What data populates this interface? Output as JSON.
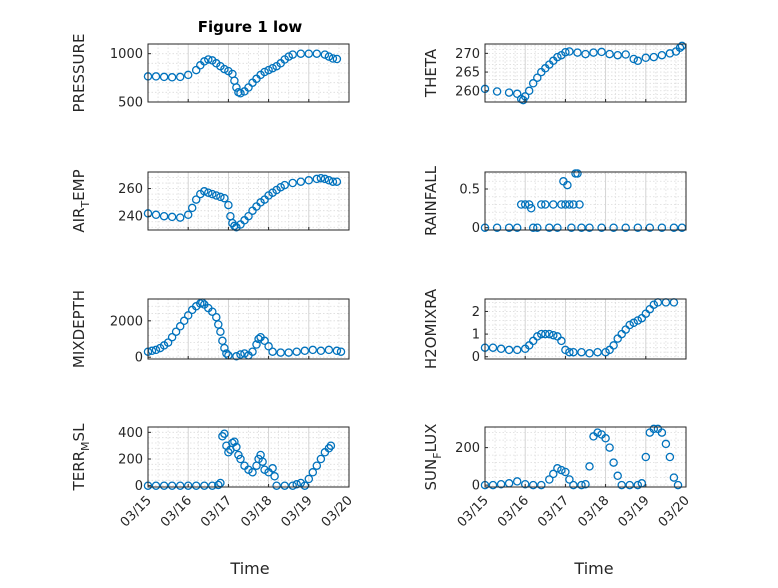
{
  "figure": {
    "title": "Figure 1 low",
    "xlabel": "Time"
  },
  "colors": {
    "marker": "#0072BD",
    "axis": "#262626",
    "grid": "#dcdcdc"
  },
  "x_ticks": [
    "03/15",
    "03/16",
    "03/17",
    "03/18",
    "03/19",
    "03/20"
  ],
  "chart_data": [
    {
      "type": "scatter",
      "ylabel": "PRESSURE",
      "yticks": [
        "500",
        "1000"
      ],
      "ylim": [
        500,
        1100
      ],
      "points": [
        [
          0.0,
          765
        ],
        [
          0.2,
          765
        ],
        [
          0.4,
          760
        ],
        [
          0.6,
          755
        ],
        [
          0.8,
          760
        ],
        [
          1.0,
          780
        ],
        [
          1.2,
          830
        ],
        [
          1.3,
          880
        ],
        [
          1.4,
          920
        ],
        [
          1.5,
          940
        ],
        [
          1.6,
          930
        ],
        [
          1.7,
          900
        ],
        [
          1.8,
          870
        ],
        [
          1.9,
          840
        ],
        [
          2.0,
          820
        ],
        [
          2.1,
          790
        ],
        [
          2.15,
          720
        ],
        [
          2.2,
          650
        ],
        [
          2.25,
          600
        ],
        [
          2.3,
          590
        ],
        [
          2.4,
          610
        ],
        [
          2.5,
          650
        ],
        [
          2.6,
          700
        ],
        [
          2.7,
          740
        ],
        [
          2.8,
          780
        ],
        [
          2.9,
          810
        ],
        [
          3.0,
          830
        ],
        [
          3.1,
          850
        ],
        [
          3.2,
          870
        ],
        [
          3.3,
          900
        ],
        [
          3.4,
          940
        ],
        [
          3.5,
          970
        ],
        [
          3.6,
          990
        ],
        [
          3.8,
          1000
        ],
        [
          4.0,
          1000
        ],
        [
          4.2,
          1000
        ],
        [
          4.4,
          990
        ],
        [
          4.5,
          970
        ],
        [
          4.6,
          950
        ],
        [
          4.7,
          945
        ]
      ]
    },
    {
      "type": "scatter",
      "ylabel": "THETA",
      "yticks": [
        "260",
        "265",
        "270"
      ],
      "ylim": [
        257,
        272.5
      ],
      "points": [
        [
          0.0,
          260.5
        ],
        [
          0.3,
          259.8
        ],
        [
          0.6,
          259.5
        ],
        [
          0.8,
          259.2
        ],
        [
          0.9,
          257.8
        ],
        [
          0.95,
          257.5
        ],
        [
          1.0,
          258.5
        ],
        [
          1.1,
          260
        ],
        [
          1.2,
          262
        ],
        [
          1.3,
          263.5
        ],
        [
          1.4,
          265
        ],
        [
          1.5,
          266
        ],
        [
          1.6,
          267
        ],
        [
          1.7,
          268
        ],
        [
          1.8,
          269
        ],
        [
          1.9,
          269.5
        ],
        [
          2.0,
          270.3
        ],
        [
          2.1,
          270.5
        ],
        [
          2.3,
          270.2
        ],
        [
          2.5,
          269.8
        ],
        [
          2.7,
          270.2
        ],
        [
          2.9,
          270.4
        ],
        [
          3.1,
          269.8
        ],
        [
          3.3,
          269.5
        ],
        [
          3.5,
          269.7
        ],
        [
          3.7,
          268.5
        ],
        [
          3.8,
          268
        ],
        [
          4.0,
          268.8
        ],
        [
          4.2,
          269
        ],
        [
          4.4,
          269.5
        ],
        [
          4.6,
          270
        ],
        [
          4.75,
          270.5
        ],
        [
          4.85,
          271.5
        ],
        [
          4.9,
          272
        ]
      ]
    },
    {
      "type": "scatter",
      "ylabel": "AIR_TEMP",
      "yticks": [
        "240",
        "260"
      ],
      "ylim": [
        230,
        272
      ],
      "points": [
        [
          0.0,
          242
        ],
        [
          0.2,
          241
        ],
        [
          0.4,
          240
        ],
        [
          0.6,
          239.5
        ],
        [
          0.8,
          239
        ],
        [
          1.0,
          241
        ],
        [
          1.1,
          246
        ],
        [
          1.2,
          252
        ],
        [
          1.3,
          256
        ],
        [
          1.4,
          258
        ],
        [
          1.5,
          257
        ],
        [
          1.6,
          256
        ],
        [
          1.7,
          255
        ],
        [
          1.8,
          254
        ],
        [
          1.9,
          253
        ],
        [
          2.0,
          248
        ],
        [
          2.05,
          240
        ],
        [
          2.1,
          235
        ],
        [
          2.15,
          233
        ],
        [
          2.2,
          232
        ],
        [
          2.3,
          234
        ],
        [
          2.4,
          237
        ],
        [
          2.5,
          240
        ],
        [
          2.6,
          244
        ],
        [
          2.7,
          247
        ],
        [
          2.8,
          250
        ],
        [
          2.9,
          252
        ],
        [
          3.0,
          255
        ],
        [
          3.1,
          257
        ],
        [
          3.2,
          259
        ],
        [
          3.3,
          261
        ],
        [
          3.4,
          262.5
        ],
        [
          3.6,
          264
        ],
        [
          3.8,
          265
        ],
        [
          4.0,
          266
        ],
        [
          4.2,
          267
        ],
        [
          4.3,
          267.5
        ],
        [
          4.4,
          267
        ],
        [
          4.5,
          266
        ],
        [
          4.6,
          265
        ],
        [
          4.7,
          265
        ]
      ]
    },
    {
      "type": "scatter",
      "ylabel": "RAINFALL",
      "yticks": [
        "0",
        "0.5"
      ],
      "ylim": [
        -0.03,
        0.72
      ],
      "points": [
        [
          0.0,
          0
        ],
        [
          0.3,
          0
        ],
        [
          0.6,
          0
        ],
        [
          0.8,
          0
        ],
        [
          0.9,
          0.3
        ],
        [
          1.0,
          0.3
        ],
        [
          1.1,
          0.3
        ],
        [
          1.15,
          0.25
        ],
        [
          1.2,
          0
        ],
        [
          1.3,
          0
        ],
        [
          1.4,
          0.3
        ],
        [
          1.5,
          0.3
        ],
        [
          1.6,
          0
        ],
        [
          1.7,
          0.3
        ],
        [
          1.8,
          0
        ],
        [
          1.9,
          0.3
        ],
        [
          1.95,
          0.6
        ],
        [
          2.0,
          0.3
        ],
        [
          2.05,
          0.55
        ],
        [
          2.1,
          0.3
        ],
        [
          2.15,
          0
        ],
        [
          2.2,
          0.3
        ],
        [
          2.25,
          0.7
        ],
        [
          2.3,
          0.7
        ],
        [
          2.35,
          0.3
        ],
        [
          2.4,
          0
        ],
        [
          2.6,
          0
        ],
        [
          2.9,
          0
        ],
        [
          3.2,
          0
        ],
        [
          3.5,
          0
        ],
        [
          3.8,
          0
        ],
        [
          4.1,
          0
        ],
        [
          4.4,
          0
        ],
        [
          4.7,
          0
        ],
        [
          4.9,
          0
        ]
      ]
    },
    {
      "type": "scatter",
      "ylabel": "MIXDEPTH",
      "yticks": [
        "0",
        "2000"
      ],
      "ylim": [
        -100,
        3200
      ],
      "points": [
        [
          0.0,
          300
        ],
        [
          0.1,
          350
        ],
        [
          0.2,
          400
        ],
        [
          0.3,
          500
        ],
        [
          0.4,
          650
        ],
        [
          0.5,
          800
        ],
        [
          0.6,
          1100
        ],
        [
          0.7,
          1400
        ],
        [
          0.8,
          1700
        ],
        [
          0.9,
          2000
        ],
        [
          1.0,
          2300
        ],
        [
          1.1,
          2600
        ],
        [
          1.2,
          2800
        ],
        [
          1.3,
          2950
        ],
        [
          1.35,
          3000
        ],
        [
          1.4,
          2900
        ],
        [
          1.5,
          2700
        ],
        [
          1.6,
          2500
        ],
        [
          1.7,
          2200
        ],
        [
          1.75,
          1800
        ],
        [
          1.8,
          1400
        ],
        [
          1.85,
          900
        ],
        [
          1.9,
          500
        ],
        [
          1.95,
          200
        ],
        [
          2.0,
          100
        ],
        [
          2.2,
          50
        ],
        [
          2.3,
          150
        ],
        [
          2.4,
          200
        ],
        [
          2.5,
          100
        ],
        [
          2.6,
          300
        ],
        [
          2.7,
          700
        ],
        [
          2.75,
          1000
        ],
        [
          2.8,
          1100
        ],
        [
          2.9,
          900
        ],
        [
          3.0,
          600
        ],
        [
          3.1,
          300
        ],
        [
          3.3,
          250
        ],
        [
          3.5,
          250
        ],
        [
          3.7,
          300
        ],
        [
          3.9,
          350
        ],
        [
          4.1,
          400
        ],
        [
          4.3,
          350
        ],
        [
          4.5,
          400
        ],
        [
          4.7,
          350
        ],
        [
          4.8,
          300
        ]
      ]
    },
    {
      "type": "scatter",
      "ylabel": "H2OMIXRA",
      "yticks": [
        "0",
        "1",
        "2"
      ],
      "ylim": [
        -0.1,
        2.55
      ],
      "points": [
        [
          0.0,
          0.4
        ],
        [
          0.2,
          0.4
        ],
        [
          0.4,
          0.35
        ],
        [
          0.6,
          0.3
        ],
        [
          0.8,
          0.3
        ],
        [
          1.0,
          0.35
        ],
        [
          1.1,
          0.5
        ],
        [
          1.2,
          0.7
        ],
        [
          1.3,
          0.9
        ],
        [
          1.4,
          1.0
        ],
        [
          1.5,
          1.0
        ],
        [
          1.6,
          1.0
        ],
        [
          1.7,
          0.95
        ],
        [
          1.8,
          0.9
        ],
        [
          1.9,
          0.7
        ],
        [
          2.0,
          0.3
        ],
        [
          2.1,
          0.2
        ],
        [
          2.2,
          0.2
        ],
        [
          2.4,
          0.2
        ],
        [
          2.6,
          0.15
        ],
        [
          2.8,
          0.2
        ],
        [
          3.0,
          0.2
        ],
        [
          3.1,
          0.3
        ],
        [
          3.2,
          0.5
        ],
        [
          3.3,
          0.8
        ],
        [
          3.4,
          1.0
        ],
        [
          3.5,
          1.2
        ],
        [
          3.6,
          1.4
        ],
        [
          3.7,
          1.5
        ],
        [
          3.8,
          1.6
        ],
        [
          3.9,
          1.7
        ],
        [
          4.0,
          1.9
        ],
        [
          4.1,
          2.1
        ],
        [
          4.2,
          2.3
        ],
        [
          4.3,
          2.4
        ],
        [
          4.5,
          2.4
        ],
        [
          4.7,
          2.4
        ]
      ]
    },
    {
      "type": "scatter",
      "ylabel": "TERR_MSL",
      "yticks": [
        "0",
        "200",
        "400"
      ],
      "ylim": [
        -10,
        440
      ],
      "points": [
        [
          0.0,
          0
        ],
        [
          0.2,
          0
        ],
        [
          0.4,
          0
        ],
        [
          0.6,
          0
        ],
        [
          0.8,
          0
        ],
        [
          1.0,
          0
        ],
        [
          1.2,
          0
        ],
        [
          1.4,
          0
        ],
        [
          1.6,
          0
        ],
        [
          1.75,
          5
        ],
        [
          1.8,
          20
        ],
        [
          1.85,
          370
        ],
        [
          1.9,
          390
        ],
        [
          1.95,
          300
        ],
        [
          2.0,
          250
        ],
        [
          2.05,
          270
        ],
        [
          2.1,
          320
        ],
        [
          2.15,
          330
        ],
        [
          2.2,
          290
        ],
        [
          2.25,
          230
        ],
        [
          2.3,
          200
        ],
        [
          2.4,
          150
        ],
        [
          2.5,
          120
        ],
        [
          2.6,
          100
        ],
        [
          2.7,
          150
        ],
        [
          2.75,
          200
        ],
        [
          2.8,
          230
        ],
        [
          2.85,
          180
        ],
        [
          2.9,
          120
        ],
        [
          3.0,
          100
        ],
        [
          3.1,
          130
        ],
        [
          3.15,
          70
        ],
        [
          3.2,
          0
        ],
        [
          3.4,
          0
        ],
        [
          3.6,
          0
        ],
        [
          3.7,
          10
        ],
        [
          3.8,
          20
        ],
        [
          3.9,
          0
        ],
        [
          4.0,
          50
        ],
        [
          4.1,
          100
        ],
        [
          4.2,
          150
        ],
        [
          4.3,
          200
        ],
        [
          4.4,
          250
        ],
        [
          4.5,
          280
        ],
        [
          4.55,
          300
        ]
      ]
    },
    {
      "type": "scatter",
      "ylabel": "SUN_FLUX",
      "yticks": [
        "0",
        "200"
      ],
      "ylim": [
        -10,
        310
      ],
      "points": [
        [
          0.0,
          0
        ],
        [
          0.2,
          0
        ],
        [
          0.4,
          5
        ],
        [
          0.6,
          10
        ],
        [
          0.8,
          20
        ],
        [
          1.0,
          5
        ],
        [
          1.2,
          0
        ],
        [
          1.4,
          0
        ],
        [
          1.6,
          30
        ],
        [
          1.7,
          60
        ],
        [
          1.8,
          90
        ],
        [
          1.9,
          80
        ],
        [
          2.0,
          70
        ],
        [
          2.1,
          30
        ],
        [
          2.2,
          0
        ],
        [
          2.4,
          0
        ],
        [
          2.5,
          5
        ],
        [
          2.6,
          100
        ],
        [
          2.7,
          260
        ],
        [
          2.8,
          280
        ],
        [
          2.9,
          270
        ],
        [
          3.0,
          250
        ],
        [
          3.1,
          200
        ],
        [
          3.2,
          120
        ],
        [
          3.3,
          50
        ],
        [
          3.4,
          0
        ],
        [
          3.6,
          0
        ],
        [
          3.8,
          0
        ],
        [
          3.9,
          10
        ],
        [
          4.0,
          150
        ],
        [
          4.1,
          280
        ],
        [
          4.2,
          300
        ],
        [
          4.3,
          300
        ],
        [
          4.4,
          280
        ],
        [
          4.5,
          220
        ],
        [
          4.6,
          150
        ],
        [
          4.7,
          40
        ],
        [
          4.8,
          0
        ]
      ]
    }
  ]
}
